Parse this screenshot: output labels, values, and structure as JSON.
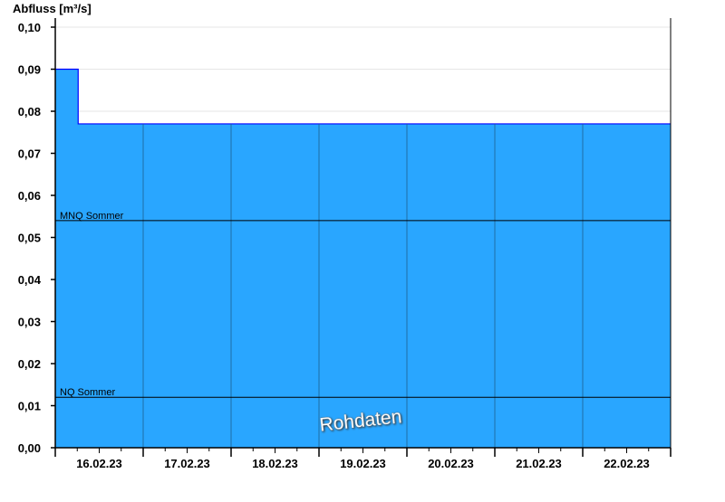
{
  "chart_data": {
    "type": "area",
    "ylabel": "Abfluss [m³/s]",
    "ylim": [
      0,
      0.1
    ],
    "yticks": [
      0.0,
      0.01,
      0.02,
      0.03,
      0.04,
      0.05,
      0.06,
      0.07,
      0.08,
      0.09,
      0.1
    ],
    "ytick_labels": [
      "0,00",
      "0,01",
      "0,02",
      "0,03",
      "0,04",
      "0,05",
      "0,06",
      "0,07",
      "0,08",
      "0,09",
      "0,10"
    ],
    "xlim": [
      "2023-02-16T00:00",
      "2023-02-23T00:00"
    ],
    "xtick_labels": [
      "16.02.23",
      "17.02.23",
      "18.02.23",
      "19.02.23",
      "20.02.23",
      "21.02.23",
      "22.02.23"
    ],
    "grid": true,
    "series": [
      {
        "points": [
          {
            "x": "2023-02-16T00:00",
            "y": 0.09
          },
          {
            "x": "2023-02-16T06:15",
            "y": 0.09
          },
          {
            "x": "2023-02-16T06:15",
            "y": 0.077
          },
          {
            "x": "2023-02-23T00:00",
            "y": 0.077
          }
        ]
      }
    ],
    "reference_lines": [
      {
        "label": "MNQ Sommer",
        "y": 0.054
      },
      {
        "label": "NQ Sommer",
        "y": 0.012
      }
    ],
    "watermark": "Rohdaten",
    "colors": {
      "fill": "#29a6ff",
      "line": "#0000ff",
      "grid": "#e6e6e6",
      "daylines": "#1f5f8f"
    }
  }
}
